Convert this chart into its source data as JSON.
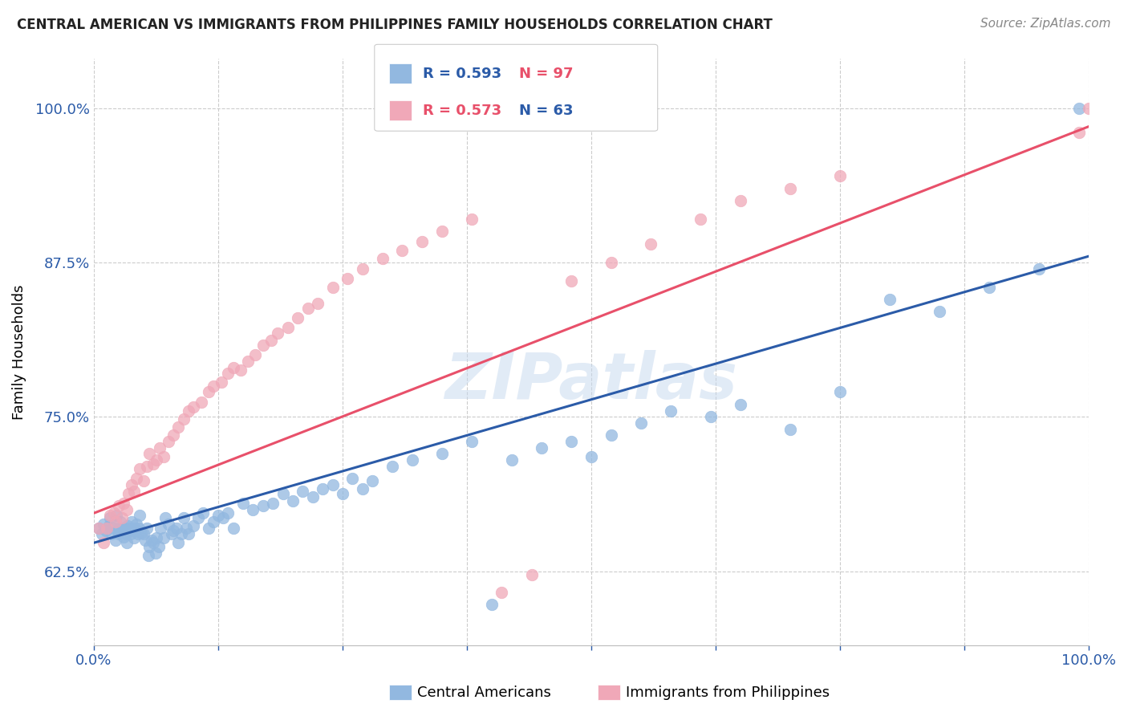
{
  "title": "CENTRAL AMERICAN VS IMMIGRANTS FROM PHILIPPINES FAMILY HOUSEHOLDS CORRELATION CHART",
  "source": "Source: ZipAtlas.com",
  "ylabel": "Family Households",
  "ytick_values": [
    0.625,
    0.75,
    0.875,
    1.0
  ],
  "xlim": [
    0.0,
    1.0
  ],
  "ylim": [
    0.565,
    1.04
  ],
  "legend_blue_R": "R = 0.593",
  "legend_blue_N": "N = 97",
  "legend_pink_R": "R = 0.573",
  "legend_pink_N": "N = 63",
  "blue_color": "#92B8E0",
  "pink_color": "#F0A8B8",
  "blue_line_color": "#2B5BA8",
  "pink_line_color": "#E8506A",
  "blue_R_color": "#2B5BA8",
  "blue_N_color": "#E8506A",
  "pink_R_color": "#E8506A",
  "pink_N_color": "#2B5BA8",
  "watermark": "ZIPatlas",
  "background_color": "#FFFFFF",
  "grid_color": "#CCCCCC",
  "axis_label_color": "#2B5BA8",
  "blue_line": {
    "x0": 0.0,
    "x1": 1.0,
    "y0": 0.648,
    "y1": 0.88
  },
  "pink_line": {
    "x0": 0.0,
    "x1": 1.0,
    "y0": 0.672,
    "y1": 0.985
  },
  "blue_scatter_x": [
    0.005,
    0.008,
    0.01,
    0.012,
    0.015,
    0.016,
    0.018,
    0.02,
    0.022,
    0.023,
    0.025,
    0.026,
    0.027,
    0.028,
    0.03,
    0.031,
    0.032,
    0.033,
    0.034,
    0.035,
    0.036,
    0.037,
    0.038,
    0.04,
    0.041,
    0.042,
    0.043,
    0.044,
    0.045,
    0.046,
    0.048,
    0.05,
    0.052,
    0.053,
    0.055,
    0.056,
    0.058,
    0.06,
    0.062,
    0.063,
    0.065,
    0.067,
    0.07,
    0.072,
    0.075,
    0.078,
    0.08,
    0.083,
    0.085,
    0.088,
    0.09,
    0.093,
    0.095,
    0.1,
    0.105,
    0.11,
    0.115,
    0.12,
    0.125,
    0.13,
    0.135,
    0.14,
    0.15,
    0.16,
    0.17,
    0.18,
    0.19,
    0.2,
    0.21,
    0.22,
    0.23,
    0.24,
    0.25,
    0.26,
    0.27,
    0.28,
    0.3,
    0.32,
    0.35,
    0.38,
    0.4,
    0.42,
    0.45,
    0.48,
    0.5,
    0.52,
    0.55,
    0.58,
    0.62,
    0.65,
    0.7,
    0.75,
    0.8,
    0.85,
    0.9,
    0.95,
    0.99
  ],
  "blue_scatter_y": [
    0.66,
    0.655,
    0.663,
    0.658,
    0.662,
    0.668,
    0.655,
    0.66,
    0.65,
    0.67,
    0.655,
    0.66,
    0.665,
    0.658,
    0.653,
    0.66,
    0.655,
    0.648,
    0.662,
    0.657,
    0.66,
    0.655,
    0.665,
    0.652,
    0.66,
    0.658,
    0.663,
    0.655,
    0.66,
    0.67,
    0.656,
    0.655,
    0.65,
    0.66,
    0.638,
    0.645,
    0.65,
    0.648,
    0.64,
    0.652,
    0.645,
    0.66,
    0.652,
    0.668,
    0.663,
    0.655,
    0.658,
    0.66,
    0.648,
    0.655,
    0.668,
    0.66,
    0.655,
    0.662,
    0.668,
    0.672,
    0.66,
    0.665,
    0.67,
    0.668,
    0.672,
    0.66,
    0.68,
    0.675,
    0.678,
    0.68,
    0.688,
    0.682,
    0.69,
    0.685,
    0.692,
    0.695,
    0.688,
    0.7,
    0.692,
    0.698,
    0.71,
    0.715,
    0.72,
    0.73,
    0.598,
    0.715,
    0.725,
    0.73,
    0.718,
    0.735,
    0.745,
    0.755,
    0.75,
    0.76,
    0.74,
    0.77,
    0.845,
    0.835,
    0.855,
    0.87,
    1.0
  ],
  "pink_scatter_x": [
    0.005,
    0.01,
    0.013,
    0.016,
    0.02,
    0.022,
    0.025,
    0.028,
    0.03,
    0.033,
    0.035,
    0.038,
    0.04,
    0.043,
    0.046,
    0.05,
    0.053,
    0.056,
    0.06,
    0.063,
    0.066,
    0.07,
    0.075,
    0.08,
    0.085,
    0.09,
    0.095,
    0.1,
    0.108,
    0.115,
    0.12,
    0.128,
    0.135,
    0.14,
    0.148,
    0.155,
    0.162,
    0.17,
    0.178,
    0.185,
    0.195,
    0.205,
    0.215,
    0.225,
    0.24,
    0.255,
    0.27,
    0.29,
    0.31,
    0.33,
    0.35,
    0.38,
    0.41,
    0.44,
    0.48,
    0.52,
    0.56,
    0.61,
    0.65,
    0.7,
    0.75,
    0.99,
    1.0
  ],
  "pink_scatter_y": [
    0.66,
    0.648,
    0.66,
    0.67,
    0.672,
    0.665,
    0.678,
    0.668,
    0.68,
    0.675,
    0.688,
    0.695,
    0.69,
    0.7,
    0.708,
    0.698,
    0.71,
    0.72,
    0.712,
    0.715,
    0.725,
    0.718,
    0.73,
    0.735,
    0.742,
    0.748,
    0.755,
    0.758,
    0.762,
    0.77,
    0.775,
    0.778,
    0.785,
    0.79,
    0.788,
    0.795,
    0.8,
    0.808,
    0.812,
    0.818,
    0.822,
    0.83,
    0.838,
    0.842,
    0.855,
    0.862,
    0.87,
    0.878,
    0.885,
    0.892,
    0.9,
    0.91,
    0.608,
    0.622,
    0.86,
    0.875,
    0.89,
    0.91,
    0.925,
    0.935,
    0.945,
    0.98,
    1.0
  ]
}
